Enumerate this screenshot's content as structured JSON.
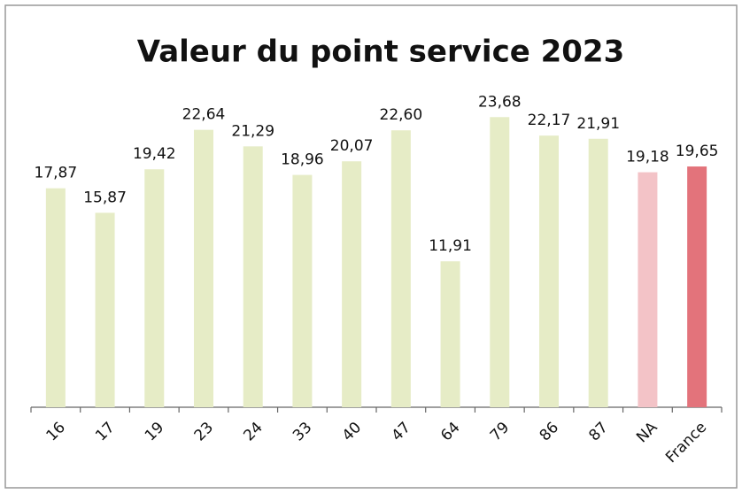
{
  "chart_data": {
    "type": "bar",
    "title": "Valeur du point service 2023",
    "categories": [
      "16",
      "17",
      "19",
      "23",
      "24",
      "33",
      "40",
      "47",
      "64",
      "79",
      "86",
      "87",
      "NA",
      "France"
    ],
    "values": [
      17.87,
      15.87,
      19.42,
      22.64,
      21.29,
      18.96,
      20.07,
      22.6,
      11.91,
      23.68,
      22.17,
      21.91,
      19.18,
      19.65
    ],
    "value_labels": [
      "17,87",
      "15,87",
      "19,42",
      "22,64",
      "21,29",
      "18,96",
      "20,07",
      "22,60",
      "11,91",
      "23,68",
      "22,17",
      "21,91",
      "19,18",
      "19,65"
    ],
    "colors": [
      "#e6ecc6",
      "#e6ecc6",
      "#e6ecc6",
      "#e6ecc6",
      "#e6ecc6",
      "#e6ecc6",
      "#e6ecc6",
      "#e6ecc6",
      "#e6ecc6",
      "#e6ecc6",
      "#e6ecc6",
      "#e6ecc6",
      "#f3c3c7",
      "#e3737b"
    ],
    "ylim": [
      0,
      25
    ]
  }
}
